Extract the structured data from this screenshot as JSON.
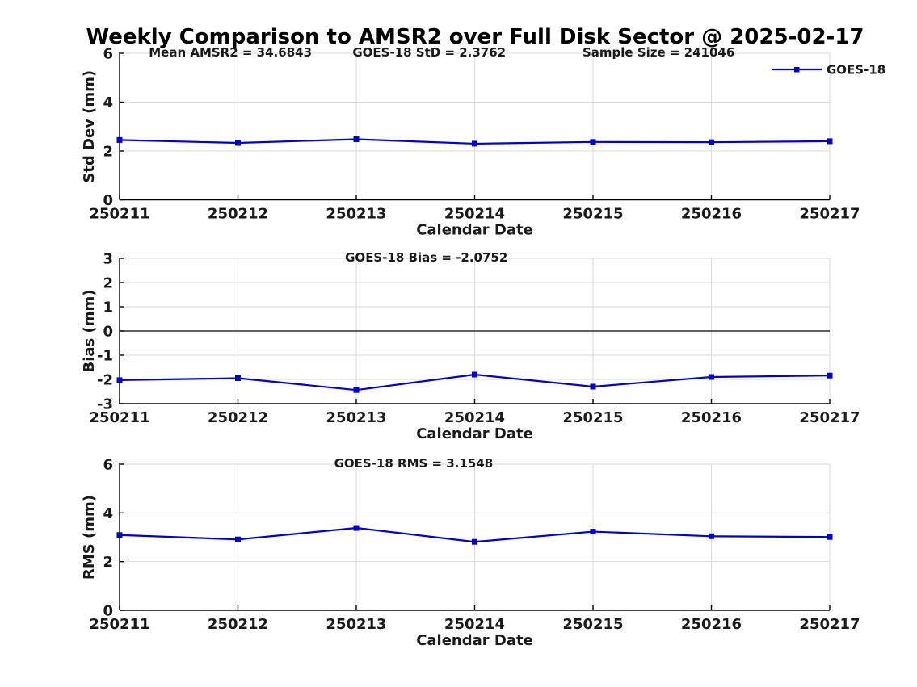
{
  "title": "Weekly Comparison to AMSR2 over Full Disk Sector @ 2025-02-17",
  "colors": {
    "line": "#0000CC",
    "axis": "#000000",
    "grid": "#d9d9d9",
    "zero_line": "#000000",
    "text": "#1a1a1a",
    "background": "#ffffff"
  },
  "legend": {
    "label": "GOES-18",
    "position": "top-right"
  },
  "chart_data": [
    {
      "type": "line",
      "panel": "std-dev",
      "categories": [
        "250211",
        "250212",
        "250213",
        "250214",
        "250215",
        "250216",
        "250217"
      ],
      "series": [
        {
          "name": "GOES-18",
          "values": [
            2.45,
            2.33,
            2.48,
            2.3,
            2.37,
            2.36,
            2.4
          ]
        }
      ],
      "xlabel": "Calendar Date",
      "ylabel": "Std Dev (mm)",
      "ylim": [
        0,
        6
      ],
      "yticks": [
        0,
        2,
        4,
        6
      ],
      "grid": true,
      "zero_line": false,
      "show_legend": true,
      "annotations": [
        "Mean AMSR2 = 34.6843",
        "GOES-18 StD = 2.3762",
        "Sample Size = 241046"
      ]
    },
    {
      "type": "line",
      "panel": "bias",
      "categories": [
        "250211",
        "250212",
        "250213",
        "250214",
        "250215",
        "250216",
        "250217"
      ],
      "series": [
        {
          "name": "GOES-18",
          "values": [
            -2.03,
            -1.95,
            -2.44,
            -1.8,
            -2.3,
            -1.9,
            -1.84
          ]
        }
      ],
      "xlabel": "Calendar Date",
      "ylabel": "Bias (mm)",
      "ylim": [
        -3,
        3
      ],
      "yticks": [
        -3,
        -2,
        -1,
        0,
        1,
        2,
        3
      ],
      "grid": true,
      "zero_line": true,
      "show_legend": false,
      "annotations": [
        "GOES-18 Bias  = -2.0752"
      ]
    },
    {
      "type": "line",
      "panel": "rms",
      "categories": [
        "250211",
        "250212",
        "250213",
        "250214",
        "250215",
        "250216",
        "250217"
      ],
      "series": [
        {
          "name": "GOES-18",
          "values": [
            3.09,
            2.91,
            3.38,
            2.81,
            3.23,
            3.04,
            3.01
          ]
        }
      ],
      "xlabel": "Calendar Date",
      "ylabel": "RMS (mm)",
      "ylim": [
        0,
        6
      ],
      "yticks": [
        0,
        2,
        4,
        6
      ],
      "grid": true,
      "zero_line": false,
      "show_legend": false,
      "annotations": [
        "GOES-18 RMS = 3.1548"
      ]
    }
  ]
}
